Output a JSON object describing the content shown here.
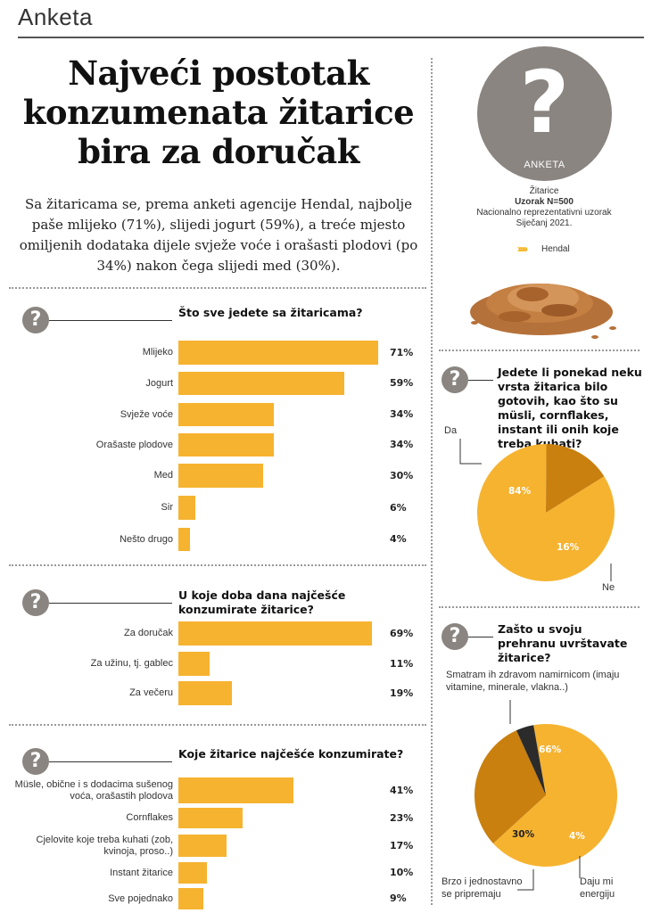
{
  "section": "Anketa",
  "headline": "Najveći postotak konzumenata žitarice bira za doručak",
  "lead": "Sa žitaricama se, prema anketi agencije Hendal, najbolje paše mlijeko (71%), slijedi jogurt (59%), a treće mjesto omiljenih dodataka dijele svježe voće i orašasti plodovi (po 34%) nakon čega slijedi med (30%).",
  "badge": {
    "mark": "?",
    "label": "ANKETA"
  },
  "meta": {
    "topic": "Žitarice",
    "sample": "Uzorak N=500",
    "desc": "Nacionalno reprezentativni uzorak",
    "date": "Siječanj 2021.",
    "logo": "Hendal"
  },
  "colors": {
    "bar": "#f6b330",
    "pie_main": "#f6b330",
    "pie_secondary": "#c9800f",
    "pie_dark": "#2b2b2b",
    "badge": "#8a8580"
  },
  "chart_data": [
    {
      "type": "bar",
      "title": "Što sve jedete sa žitaricama?",
      "categories": [
        "Mlijeko",
        "Jogurt",
        "Svježe voće",
        "Orašaste plodove",
        "Med",
        "Sir",
        "Nešto drugo"
      ],
      "values": [
        71,
        59,
        34,
        34,
        30,
        6,
        4
      ],
      "value_labels": [
        "71%",
        "59%",
        "34%",
        "34%",
        "30%",
        "6%",
        "4%"
      ]
    },
    {
      "type": "bar",
      "title": "U koje doba dana najčešće konzumirate žitarice?",
      "categories": [
        "Za doručak",
        "Za užinu, tj. gablec",
        "Za večeru"
      ],
      "values": [
        69,
        11,
        19
      ],
      "value_labels": [
        "69%",
        "11%",
        "19%"
      ]
    },
    {
      "type": "bar",
      "title": "Koje žitarice najčešće konzumirate?",
      "categories": [
        "Müsle, obične i s dodacima sušenog voća, orašastih plodova",
        "Cornflakes",
        "Cjelovite koje treba kuhati (zob, kvinoja, proso..)",
        "Instant žitarice",
        "Sve pojednako"
      ],
      "values": [
        41,
        23,
        17,
        10,
        9
      ],
      "value_labels": [
        "41%",
        "23%",
        "17%",
        "10%",
        "9%"
      ]
    },
    {
      "type": "pie",
      "title": "Jedete li ponekad neku vrsta žitarica bilo gotovih, kao što su müsli, cornflakes, instant ili onih koje treba kuhati?",
      "categories": [
        "Da",
        "Ne"
      ],
      "values": [
        84,
        16
      ],
      "value_labels": [
        "84%",
        "16%"
      ]
    },
    {
      "type": "pie",
      "title": "Zašto u svoju prehranu uvrštavate žitarice?",
      "categories": [
        "Smatram ih zdravom namirnicom (imaju vitamine, minerale, vlakna..)",
        "Brzo i jednostavno se pripremaju",
        "Daju mi energiju"
      ],
      "values": [
        66,
        30,
        4
      ],
      "value_labels": [
        "66%",
        "30%",
        "4%"
      ]
    }
  ]
}
